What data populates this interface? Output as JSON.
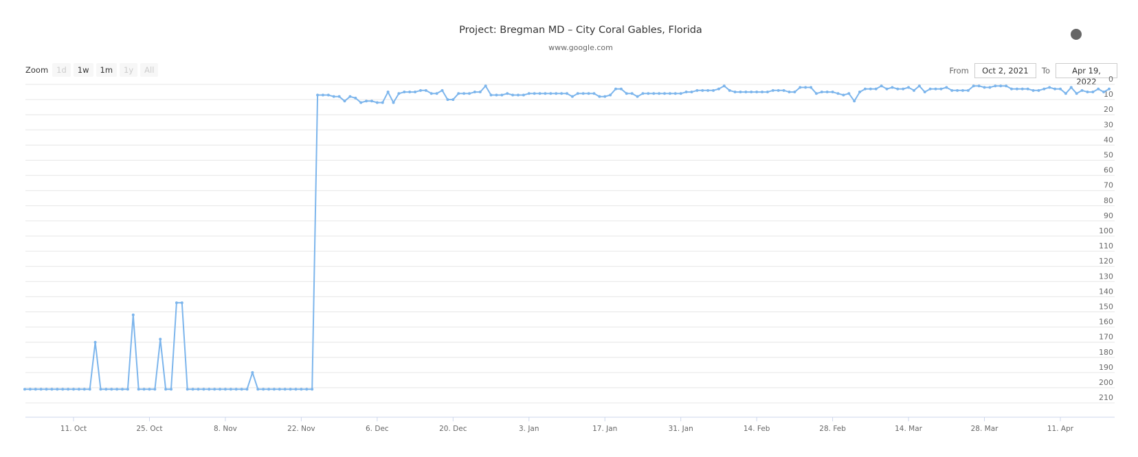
{
  "header": {
    "title": "Project: Bregman MD – City Coral Gables, Florida",
    "subtitle": "www.google.com"
  },
  "zoom_controls": {
    "label": "Zoom",
    "buttons": [
      {
        "label": "1d",
        "enabled": false
      },
      {
        "label": "1w",
        "enabled": true
      },
      {
        "label": "1m",
        "enabled": true
      },
      {
        "label": "1y",
        "enabled": false
      },
      {
        "label": "All",
        "enabled": false
      }
    ]
  },
  "date_range": {
    "from_label": "From",
    "from_value": "Oct 2, 2021",
    "to_label": "To",
    "to_value": "Apr 19, 2022"
  },
  "context_menu_icon": "context-menu-dot",
  "colors": {
    "series": "#7cb5ec",
    "grid": "#e6e6e6",
    "axis": "#ccd6eb",
    "text": "#666666"
  },
  "chart_data": {
    "type": "line",
    "title": "Project: Bregman MD – City Coral Gables, Florida",
    "subtitle": "www.google.com",
    "xlabel": "",
    "ylabel": "",
    "y_reversed": true,
    "y_axis_position": "right",
    "ylim": [
      0,
      210
    ],
    "yticks": [
      0,
      10,
      20,
      30,
      40,
      50,
      60,
      70,
      80,
      90,
      100,
      110,
      120,
      130,
      140,
      150,
      160,
      170,
      180,
      190,
      200,
      210
    ],
    "x_start": "2021-10-02",
    "x_end": "2022-04-19",
    "x_interval": "1 day",
    "xticks": [
      "11. Oct",
      "25. Oct",
      "8. Nov",
      "22. Nov",
      "6. Dec",
      "20. Dec",
      "3. Jan",
      "17. Jan",
      "31. Jan",
      "14. Feb",
      "28. Feb",
      "14. Mar",
      "28. Mar",
      "11. Apr"
    ],
    "grid": true,
    "legend": false,
    "series": [
      {
        "name": "www.google.com",
        "values": [
          201,
          201,
          201,
          201,
          201,
          201,
          201,
          201,
          201,
          201,
          201,
          201,
          201,
          170,
          201,
          201,
          201,
          201,
          201,
          201,
          152,
          201,
          201,
          201,
          201,
          168,
          201,
          201,
          144,
          144,
          201,
          201,
          201,
          201,
          201,
          201,
          201,
          201,
          201,
          201,
          201,
          201,
          190,
          201,
          201,
          201,
          201,
          201,
          201,
          201,
          201,
          201,
          201,
          201,
          7,
          7,
          7,
          8,
          8,
          11,
          8,
          9,
          12,
          11,
          11,
          12,
          12,
          5,
          12,
          6,
          5,
          5,
          5,
          4,
          4,
          6,
          6,
          4,
          10,
          10,
          6,
          6,
          6,
          5,
          5,
          1,
          7,
          7,
          7,
          6,
          7,
          7,
          7,
          6,
          6,
          6,
          6,
          6,
          6,
          6,
          6,
          8,
          6,
          6,
          6,
          6,
          8,
          8,
          7,
          3,
          3,
          6,
          6,
          8,
          6,
          6,
          6,
          6,
          6,
          6,
          6,
          6,
          5,
          5,
          4,
          4,
          4,
          4,
          3,
          1,
          4,
          5,
          5,
          5,
          5,
          5,
          5,
          5,
          4,
          4,
          4,
          5,
          5,
          2,
          2,
          2,
          6,
          5,
          5,
          5,
          6,
          7,
          6,
          11,
          5,
          3,
          3,
          3,
          1,
          3,
          2,
          3,
          3,
          2,
          4,
          1,
          5,
          3,
          3,
          3,
          2,
          4,
          4,
          4,
          4,
          1,
          1,
          2,
          2,
          1,
          1,
          1,
          3,
          3,
          3,
          3,
          4,
          4,
          3,
          2,
          3,
          3,
          6,
          2,
          6,
          4,
          5,
          5,
          3,
          5,
          3
        ]
      }
    ]
  }
}
